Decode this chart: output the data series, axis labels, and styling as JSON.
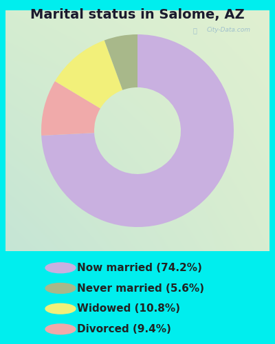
{
  "title": "Marital status in Salome, AZ",
  "categories": [
    "Now married (74.2%)",
    "Never married (5.6%)",
    "Widowed (10.8%)",
    "Divorced (9.4%)"
  ],
  "values": [
    74.2,
    5.6,
    10.8,
    9.4
  ],
  "colors": [
    "#C9B0E0",
    "#A8B88A",
    "#F2F07A",
    "#F0AAAA"
  ],
  "outer_bg": "#00EEEE",
  "chart_bg_tl": "#C8E8D8",
  "chart_bg_br": "#D8ECBC",
  "title_fontsize": 14,
  "legend_fontsize": 11,
  "watermark": "City-Data.com",
  "donut_width": 0.55
}
